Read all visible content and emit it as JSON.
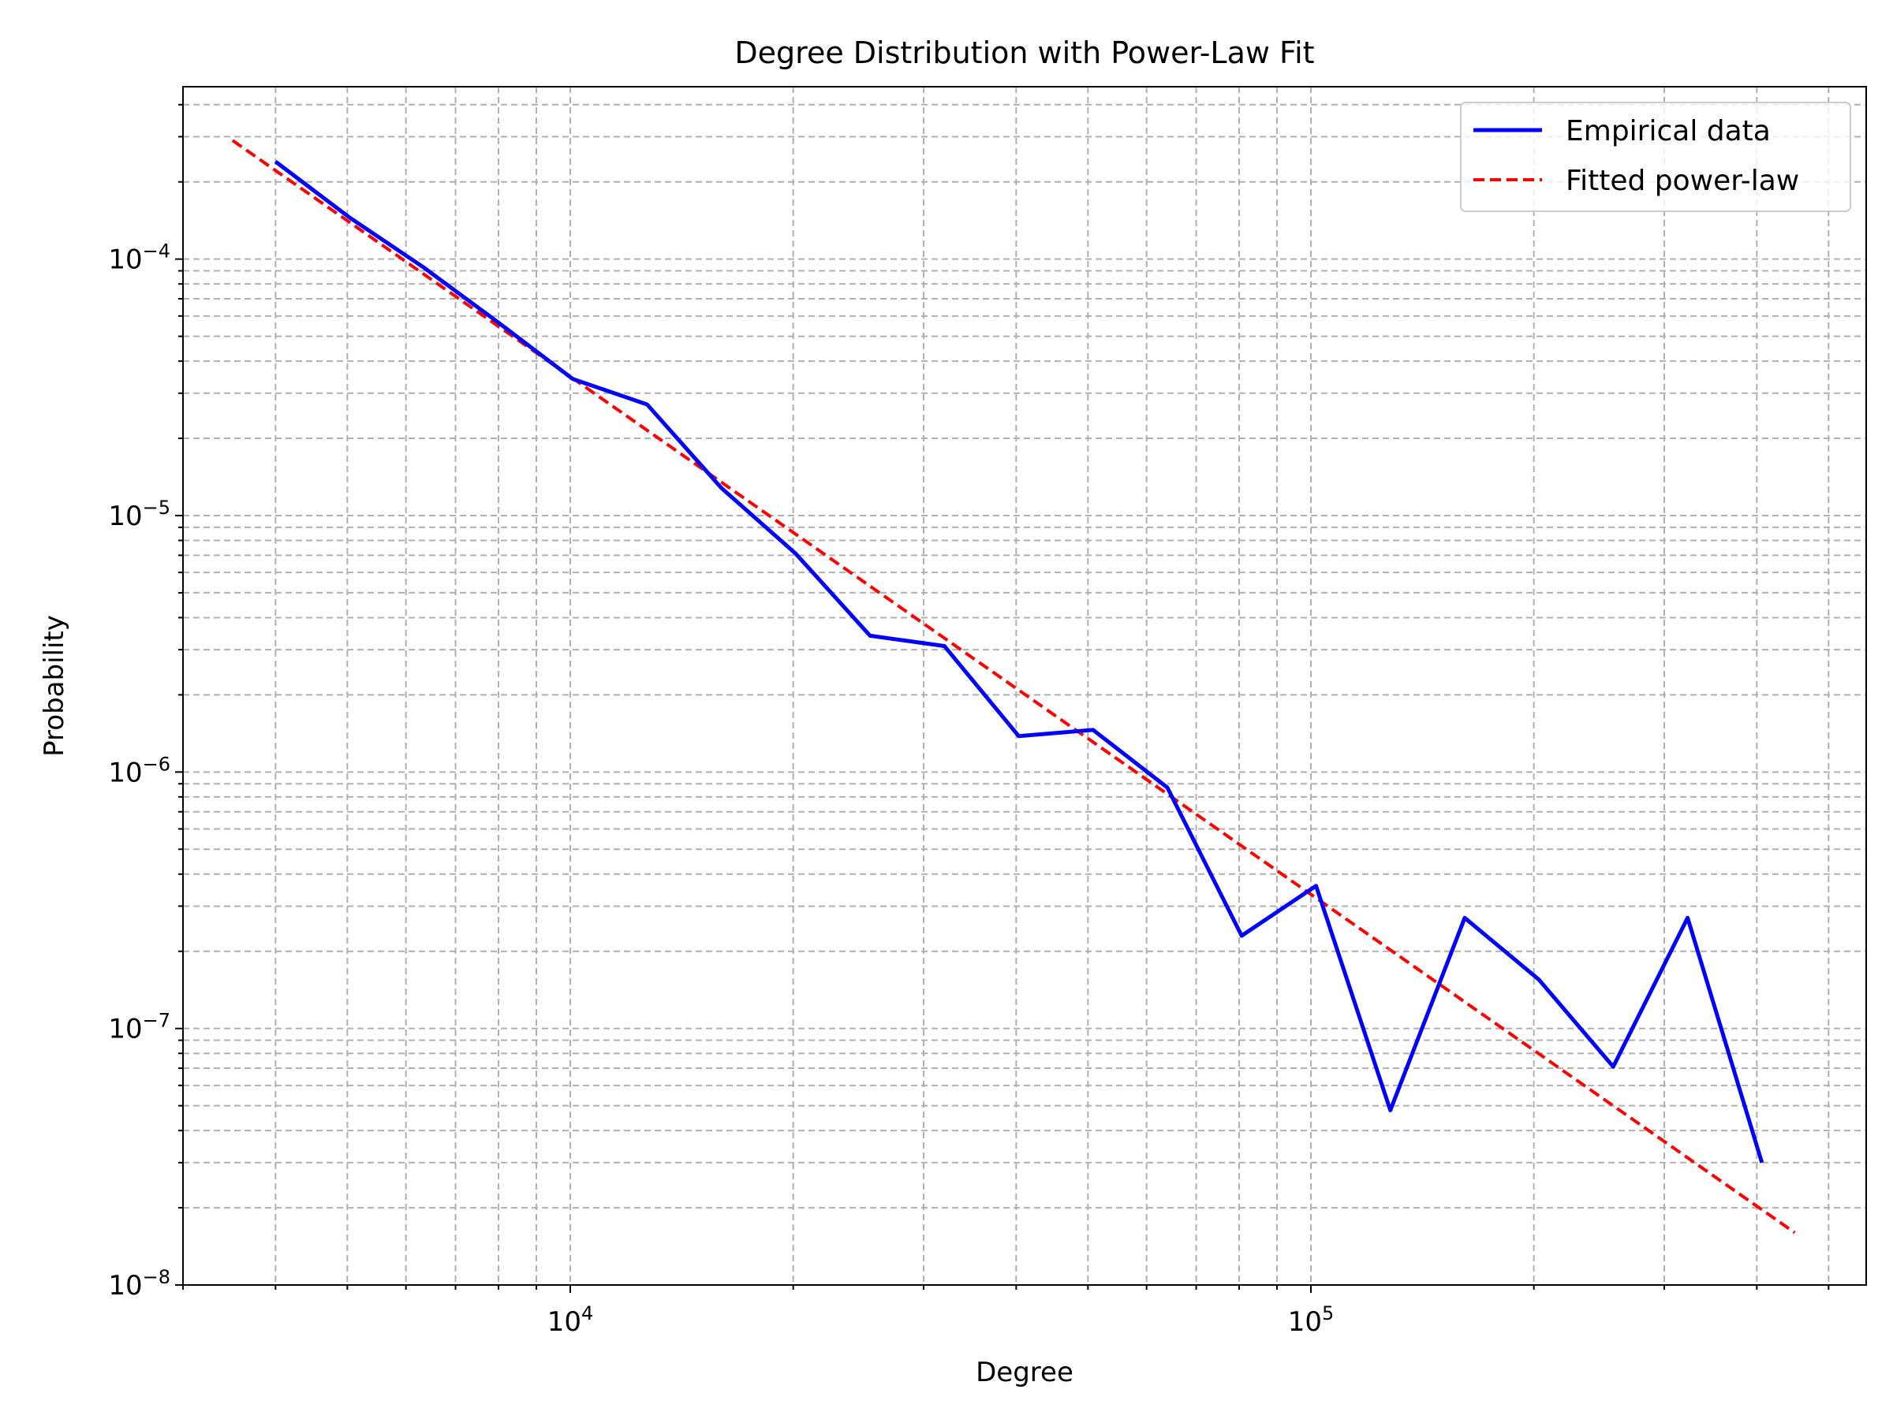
{
  "chart_data": {
    "type": "line",
    "title": "Degree Distribution with Power-Law Fit",
    "xlabel": "Degree",
    "ylabel": "Probability",
    "xscale": "log",
    "yscale": "log",
    "xlim": [
      3000,
      562000
    ],
    "ylim": [
      1e-08,
      0.00047
    ],
    "grid": "both (major and minor), dashed",
    "x_ticks": [
      {
        "value": 10000,
        "base": "10",
        "exp": "4"
      },
      {
        "value": 100000,
        "base": "10",
        "exp": "5"
      }
    ],
    "y_ticks": [
      {
        "value": 1e-08,
        "base": "10",
        "exp": "−8"
      },
      {
        "value": 1e-07,
        "base": "10",
        "exp": "−7"
      },
      {
        "value": 1e-06,
        "base": "10",
        "exp": "−6"
      },
      {
        "value": 1e-05,
        "base": "10",
        "exp": "−5"
      },
      {
        "value": 0.0001,
        "base": "10",
        "exp": "−4"
      }
    ],
    "legend": {
      "position": "top-right",
      "entries": [
        "Empirical data",
        "Fitted power-law"
      ]
    },
    "series": [
      {
        "name": "Empirical data",
        "color": "#0000ff",
        "style": "solid",
        "x": [
          4000,
          5040,
          6350,
          8000,
          10080,
          12700,
          16000,
          20160,
          25400,
          32000,
          40320,
          50800,
          64000,
          80640,
          101600,
          128000,
          161300,
          203200,
          256000,
          322600,
          406400
        ],
        "y": [
          0.00024,
          0.000145,
          9.25e-05,
          5.65e-05,
          3.41e-05,
          2.71e-05,
          1.28e-05,
          7.1e-06,
          3.4e-06,
          3.1e-06,
          1.38e-06,
          1.46e-06,
          8.7e-07,
          2.3e-07,
          3.6e-07,
          4.8e-08,
          2.7e-07,
          1.55e-07,
          7.1e-08,
          2.7e-07,
          3e-08
        ]
      },
      {
        "name": "Fitted power-law",
        "color": "#ff0000",
        "style": "dashed",
        "x": [
          3500,
          450000
        ],
        "y": [
          0.00029,
          1.6e-08
        ]
      }
    ]
  }
}
